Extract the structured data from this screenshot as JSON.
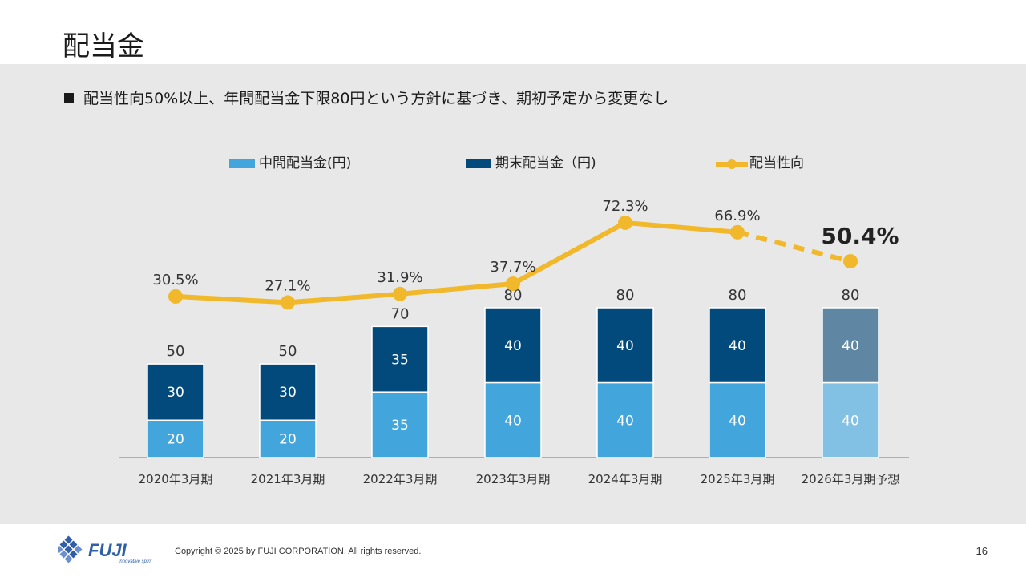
{
  "slide": {
    "title": "配当金",
    "bullet": "配当性向50%以上、年間配当金下限80円という方針に基づき、期初予定から変更なし",
    "copyright": "Copyright © 2025 by FUJI CORPORATION. All rights reserved.",
    "page_number": "16",
    "logo_text": "FUJI",
    "logo_tagline": "innovative spirit"
  },
  "chart_data": {
    "type": "bar",
    "stacked": true,
    "categories": [
      "2020年3月期",
      "2021年3月期",
      "2022年3月期",
      "2023年3月期",
      "2024年3月期",
      "2025年3月期",
      "2026年3月期予想"
    ],
    "series": [
      {
        "name": "中間配当金(円)",
        "values": [
          20,
          20,
          35,
          40,
          40,
          40,
          40
        ],
        "color": "#42a5dc",
        "forecast_color": "#83c1e4"
      },
      {
        "name": "期末配当金（円)",
        "values": [
          30,
          30,
          35,
          40,
          40,
          40,
          40
        ],
        "color": "#034a7c",
        "forecast_color": "#5f87a3"
      }
    ],
    "totals": [
      50,
      50,
      70,
      80,
      80,
      80,
      80
    ],
    "line": {
      "name": "配当性向",
      "values": [
        30.5,
        27.1,
        31.9,
        37.7,
        72.3,
        66.9,
        50.4
      ],
      "labels": [
        "30.5%",
        "27.1%",
        "31.9%",
        "37.7%",
        "72.3%",
        "66.9%",
        "50.4%"
      ],
      "color": "#f0b82a",
      "forecast_from_index": 5
    },
    "forecast_index": 6,
    "bar_ylim": [
      0,
      80
    ],
    "legend_position": "top",
    "grid": false
  }
}
